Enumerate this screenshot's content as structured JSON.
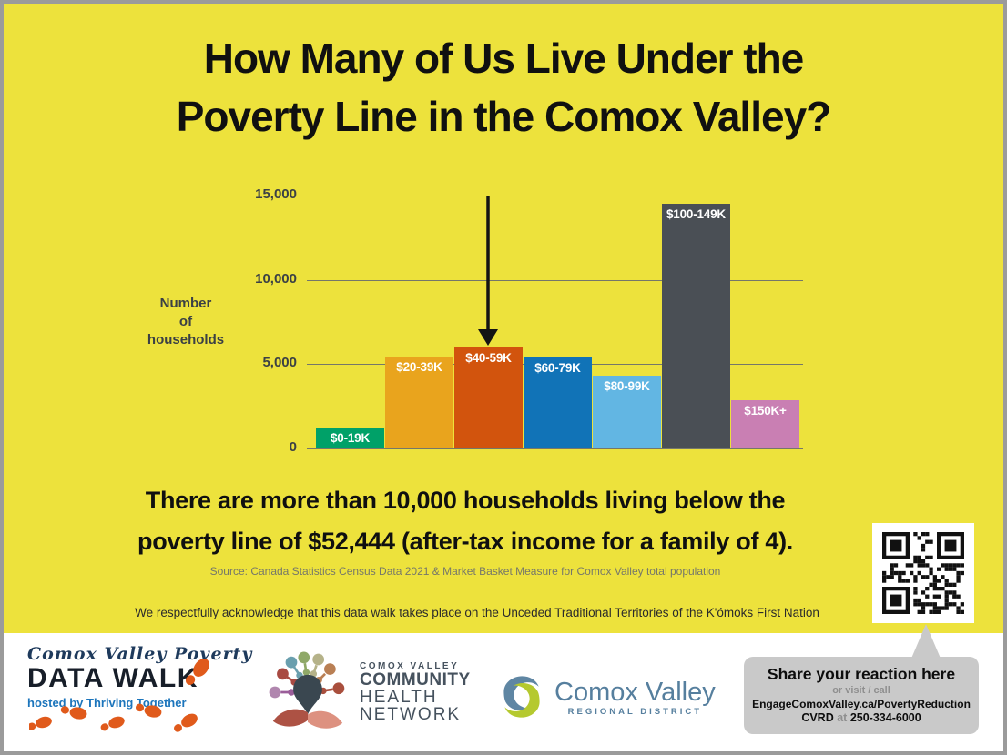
{
  "poster": {
    "title_line1": "How Many of Us Live Under the",
    "title_line2": "Poverty Line in the Comox Valley?",
    "statement_line1": "There are more than 10,000 households living below the",
    "statement_line2": "poverty line of $52,444 (after-tax income for a family of 4).",
    "source": "Source: Canada Statistics Census Data 2021 & Market Basket Measure for Comox Valley total population",
    "acknowledgment": "We respectfully acknowledge that this data walk takes place on the Unceded Traditional Territories of the K'ómoks First Nation",
    "background_color": "#EDE23C",
    "border_color": "#9B9B9B"
  },
  "chart_data": {
    "type": "bar",
    "title": "",
    "xlabel": "",
    "ylabel": "Number of households",
    "ylabel_line1": "Number",
    "ylabel_line2": "of",
    "ylabel_line3": "households",
    "categories": [
      "$0-19K",
      "$20-39K",
      "$40-59K",
      "$60-79K",
      "$80-99K",
      "$100-149K",
      "$150K+"
    ],
    "values": [
      1250,
      5450,
      6000,
      5400,
      4300,
      14500,
      2850
    ],
    "bar_colors": [
      "#00A168",
      "#E9A41D",
      "#D2540D",
      "#1173B7",
      "#62B6E3",
      "#4A4F55",
      "#C97FB3"
    ],
    "ylim": [
      0,
      15000
    ],
    "yticks": [
      0,
      5000,
      10000,
      15000
    ],
    "ytick_labels": [
      "0",
      "5,000",
      "10,000",
      "15,000"
    ],
    "grid": true,
    "legend": false,
    "annotation": {
      "shape": "down-arrow",
      "points_to": "$40-59K"
    }
  },
  "share_panel": {
    "heading": "Share your reaction here",
    "subheading": "or visit / call",
    "url": "EngageComoxValley.ca/PovertyReduction",
    "phone_prefix": "CVRD",
    "phone_mid": "at",
    "phone_number": "250-334-6000",
    "bubble_color": "#C9C9C9"
  },
  "footer": {
    "datawalk": {
      "script_line": "Comox Valley Poverty",
      "title": "DATA WALK",
      "tagline": "hosted by Thriving Together",
      "footprint_color": "#E05A1B"
    },
    "chn": {
      "line1": "COMOX VALLEY",
      "line2": "COMMUNITY",
      "line3": "HEALTH",
      "line4": "NETWORK"
    },
    "cvrd": {
      "name": "Comox Valley",
      "subtitle": "REGIONAL DISTRICT",
      "brand_blue": "#567F9E",
      "brand_lime": "#B5C92F"
    }
  }
}
